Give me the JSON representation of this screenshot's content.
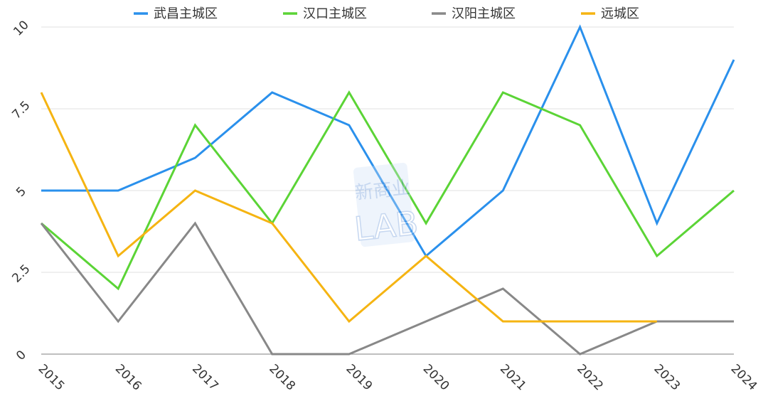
{
  "chart_data": {
    "type": "line",
    "x": [
      "2015",
      "2016",
      "2017",
      "2018",
      "2019",
      "2020",
      "2021",
      "2022",
      "2023",
      "2024"
    ],
    "y_ticks": [
      "0",
      "2.5",
      "5",
      "7.5",
      "10"
    ],
    "ylim": [
      0,
      10
    ],
    "grid": true,
    "legend_position": "top",
    "series": [
      {
        "name": "武昌主城区",
        "color": "#2a90ec",
        "values": [
          5,
          5,
          6,
          8,
          7,
          3,
          5,
          10,
          4,
          9
        ]
      },
      {
        "name": "汉口主城区",
        "color": "#5bd436",
        "values": [
          4,
          2,
          7,
          4,
          8,
          4,
          8,
          7,
          3,
          5
        ]
      },
      {
        "name": "汉阳主城区",
        "color": "#888888",
        "values": [
          4,
          1,
          4,
          0,
          0,
          1,
          2,
          0,
          1,
          1
        ]
      },
      {
        "name": "远城区",
        "color": "#f5b412",
        "values": [
          8,
          3,
          5,
          4,
          1,
          3,
          1,
          1,
          1,
          null
        ]
      }
    ]
  },
  "watermark": {
    "top_text": "新商业",
    "bottom_text": "LAB"
  }
}
